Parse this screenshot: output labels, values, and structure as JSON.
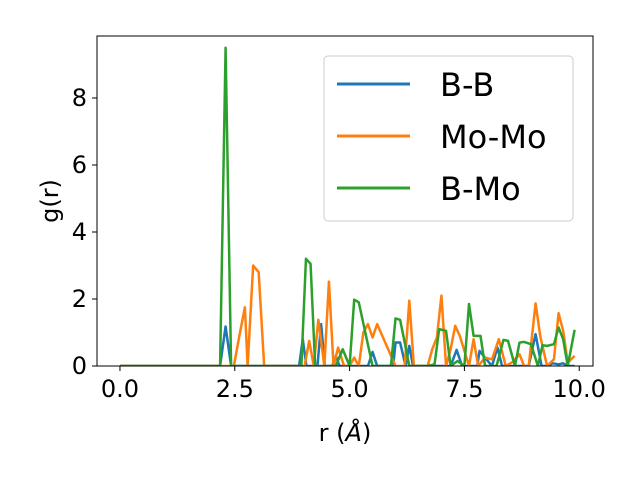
{
  "chart_data": {
    "type": "line",
    "title": "",
    "xlabel": "r (",
    "xlabel_unit": "Å",
    "xlabel_close": ")",
    "ylabel": "g(r)",
    "xlim": [
      -0.5,
      10.3
    ],
    "ylim": [
      0,
      9.85
    ],
    "xticks": [
      0.0,
      2.5,
      5.0,
      7.5,
      10.0
    ],
    "xtick_labels": [
      "0.0",
      "2.5",
      "5.0",
      "7.5",
      "10.0"
    ],
    "yticks": [
      0,
      2,
      4,
      6,
      8
    ],
    "ytick_labels": [
      "0",
      "2",
      "4",
      "6",
      "8"
    ],
    "grid": false,
    "legend_position": "upper-right",
    "series": [
      {
        "name": "B-B",
        "color": "#1f77b4",
        "x": [
          0.0,
          2.18,
          2.3,
          2.42,
          3.9,
          3.98,
          4.06,
          4.3,
          4.38,
          4.46,
          4.62,
          4.7,
          4.78,
          5.4,
          5.5,
          5.6,
          5.95,
          6.0,
          6.1,
          6.22,
          6.3,
          6.38,
          7.2,
          7.33,
          7.45,
          7.78,
          7.83,
          8.1,
          8.22,
          8.32,
          8.9,
          9.05,
          9.18,
          9.3,
          9.42,
          9.55,
          9.65,
          9.75,
          9.9
        ],
        "y": [
          0,
          0,
          1.18,
          0,
          0,
          0.8,
          0,
          0,
          1.25,
          0,
          0,
          0.3,
          0,
          0,
          0.42,
          0,
          0,
          0.7,
          0.7,
          0,
          0.6,
          0,
          0,
          0.48,
          0,
          0,
          0.45,
          0,
          0.55,
          0,
          0,
          0.95,
          0,
          0,
          0.08,
          0.05,
          0.08,
          0,
          0
        ]
      },
      {
        "name": "Mo-Mo",
        "color": "#ff7f0e",
        "x": [
          0.0,
          2.48,
          2.6,
          2.72,
          2.78,
          2.9,
          3.02,
          3.14,
          4.02,
          4.12,
          4.22,
          4.32,
          4.45,
          4.55,
          4.65,
          4.75,
          4.88,
          5.0,
          5.1,
          5.2,
          5.3,
          5.4,
          5.5,
          5.6,
          6.0,
          6.2,
          6.3,
          6.4,
          6.7,
          6.8,
          6.9,
          7.0,
          7.1,
          7.2,
          7.3,
          7.4,
          7.6,
          7.7,
          7.8,
          7.95,
          8.1,
          8.25,
          8.4,
          8.55,
          8.7,
          8.8,
          8.9,
          9.05,
          9.15,
          9.3,
          9.45,
          9.55,
          9.65,
          9.75,
          9.9
        ],
        "y": [
          0,
          0,
          0.9,
          1.75,
          0,
          3.0,
          2.8,
          0,
          0,
          0.75,
          0,
          1.38,
          0,
          2.52,
          0,
          0.55,
          0,
          0,
          0.25,
          0,
          1.0,
          1.25,
          0.85,
          1.25,
          0,
          0,
          1.95,
          0,
          0,
          0.5,
          0.85,
          2.1,
          0,
          0.5,
          1.2,
          0.9,
          0,
          0.8,
          0,
          0.25,
          0.2,
          0.8,
          0,
          0.12,
          0.35,
          0,
          0,
          1.87,
          0.9,
          0,
          0.2,
          1.58,
          1.05,
          0.1,
          0.3
        ]
      },
      {
        "name": "B-Mo",
        "color": "#2ca02c",
        "x": [
          0.0,
          2.18,
          2.3,
          2.42,
          3.95,
          4.05,
          4.15,
          4.25,
          4.7,
          4.85,
          5.0,
          5.1,
          5.2,
          5.5,
          5.6,
          5.9,
          6.0,
          6.1,
          6.2,
          6.3,
          6.5,
          6.7,
          6.85,
          6.95,
          7.1,
          7.2,
          7.35,
          7.5,
          7.6,
          7.7,
          7.85,
          7.95,
          8.1,
          8.2,
          8.35,
          8.45,
          8.6,
          8.7,
          8.8,
          8.95,
          9.1,
          9.2,
          9.3,
          9.45,
          9.55,
          9.65,
          9.75,
          9.9
        ],
        "y": [
          0,
          0,
          9.5,
          0,
          0,
          3.2,
          3.05,
          0,
          0,
          0.5,
          0,
          1.98,
          1.9,
          0,
          0,
          0,
          1.42,
          1.38,
          0.7,
          0,
          0,
          0,
          0.05,
          1.1,
          1.05,
          0,
          0.15,
          0,
          1.85,
          0.9,
          0.9,
          0,
          0,
          0,
          0.78,
          0.75,
          0,
          0.7,
          0.72,
          0.65,
          0,
          0.62,
          0.6,
          0.65,
          1.15,
          0.8,
          0,
          1.08
        ]
      }
    ]
  }
}
